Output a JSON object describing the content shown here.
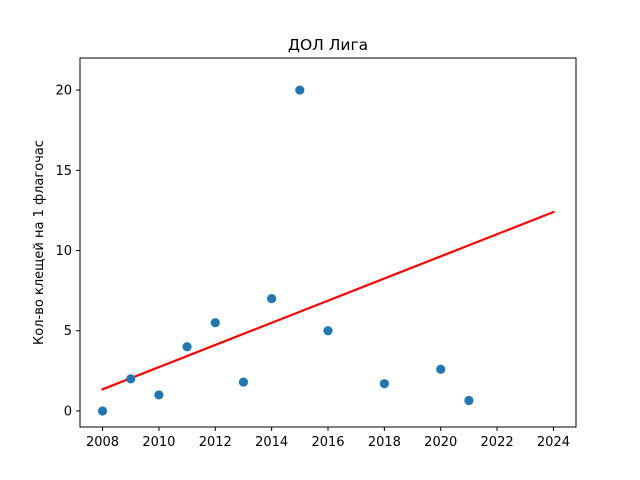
{
  "chart_data": {
    "type": "scatter",
    "title": "ДОЛ Лига",
    "xlabel": "",
    "ylabel": "Кол-во клещей на 1 флагочас",
    "xlim": [
      2007.2,
      2024.8
    ],
    "ylim": [
      -1,
      22
    ],
    "x_ticks": [
      2008,
      2010,
      2012,
      2014,
      2016,
      2018,
      2020,
      2022,
      2024
    ],
    "y_ticks": [
      0,
      5,
      10,
      15,
      20
    ],
    "grid": false,
    "legend": "none",
    "series": [
      {
        "kind": "scatter",
        "color": "#1f77b4",
        "points": [
          {
            "x": 2008,
            "y": 0.0
          },
          {
            "x": 2009,
            "y": 2.0
          },
          {
            "x": 2010,
            "y": 1.0
          },
          {
            "x": 2011,
            "y": 4.0
          },
          {
            "x": 2012,
            "y": 5.5
          },
          {
            "x": 2013,
            "y": 1.8
          },
          {
            "x": 2014,
            "y": 7.0
          },
          {
            "x": 2015,
            "y": 20.0
          },
          {
            "x": 2016,
            "y": 5.0
          },
          {
            "x": 2018,
            "y": 1.7
          },
          {
            "x": 2020,
            "y": 2.6
          },
          {
            "x": 2021,
            "y": 0.65
          }
        ]
      },
      {
        "kind": "line",
        "color": "#ff0000",
        "points": [
          {
            "x": 2008,
            "y": 1.35
          },
          {
            "x": 2024,
            "y": 12.4
          }
        ]
      }
    ]
  }
}
